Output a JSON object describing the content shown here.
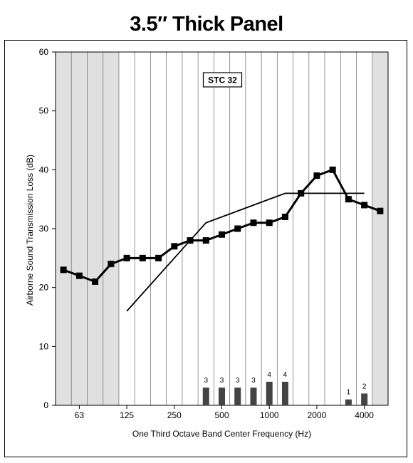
{
  "title": "3.5″ Thick Panel",
  "chart_data": {
    "type": "line",
    "title": "3.5″ Thick Panel",
    "xlabel": "One Third Octave Band Center Frequency (Hz)",
    "ylabel": "Airborne Sound Transmission Loss (dB)",
    "ylim": [
      0,
      60
    ],
    "yticks": [
      0,
      10,
      20,
      30,
      40,
      50,
      60
    ],
    "x_scale": "log (one-third octave bands)",
    "grid": "vertical lines at each band",
    "shaded_ranges": [
      "below 125 Hz",
      "above 4000 Hz"
    ],
    "bands": [
      "50",
      "63",
      "80",
      "100",
      "125",
      "160",
      "200",
      "250",
      "315",
      "400",
      "500",
      "630",
      "800",
      "1000",
      "1250",
      "1600",
      "2000",
      "2500",
      "3150",
      "4000",
      "5000"
    ],
    "xtick_labels": [
      {
        "band": "63",
        "label": "63"
      },
      {
        "band": "125",
        "label": "125"
      },
      {
        "band": "250",
        "label": "250"
      },
      {
        "band": "500",
        "label": "500"
      },
      {
        "band": "1000",
        "label": "1000"
      },
      {
        "band": "2000",
        "label": "2000"
      },
      {
        "band": "4000",
        "label": "4000"
      }
    ],
    "series": [
      {
        "type": "line-markers",
        "values": [
          23,
          22,
          21,
          24,
          25,
          25,
          25,
          27,
          28,
          28,
          29,
          30,
          31,
          31,
          32,
          36,
          39,
          40,
          35,
          34,
          33
        ]
      },
      {
        "type": "line",
        "points": [
          {
            "band": "125",
            "value": 16
          },
          {
            "band": "400",
            "value": 31
          },
          {
            "band": "1250",
            "value": 36
          },
          {
            "band": "4000",
            "value": 36
          }
        ]
      }
    ],
    "deficiencies": [
      {
        "band": "400",
        "value": 3
      },
      {
        "band": "500",
        "value": 3
      },
      {
        "band": "630",
        "value": 3
      },
      {
        "band": "800",
        "value": 3
      },
      {
        "band": "1000",
        "value": 4
      },
      {
        "band": "1250",
        "value": 4
      },
      {
        "band": "3150",
        "value": 1
      },
      {
        "band": "4000",
        "value": 2
      }
    ],
    "annotation": "STC 32"
  },
  "colors": {
    "shade": "#e0e0e0",
    "grid": "#7a7a7a",
    "line": "#000000",
    "bar": "#444444"
  }
}
